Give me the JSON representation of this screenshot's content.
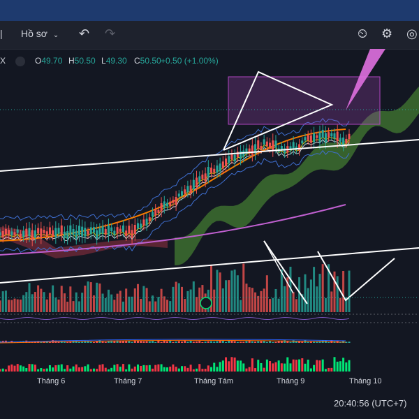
{
  "toolbar": {
    "interval_label": "Hồ sơ",
    "undo_icon": "undo-icon",
    "redo_icon": "redo-icon",
    "alert_icon": "alert-clock-icon",
    "settings_icon": "gear-icon",
    "camera_icon": "camera-icon"
  },
  "legend": {
    "close_glyph": "X",
    "open_label": "O",
    "open_value": "49.70",
    "high_label": "H",
    "high_value": "50.50",
    "low_label": "L",
    "low_value": "49.30",
    "close_label": "C",
    "close_value": "50.50",
    "change": "+0.50 (+1.00%)"
  },
  "xaxis": {
    "labels": [
      "Tháng 6",
      "Tháng 7",
      "Tháng Tám",
      "Tháng 9",
      "Tháng 10"
    ]
  },
  "footer": {
    "clock": "20:40:56 (UTC+7)"
  },
  "colors": {
    "up": "#26a69a",
    "down": "#ef5350",
    "cloud_green": "#3d6e2f",
    "cloud_red": "#7a2c3a",
    "purple_box": "#b146c2"
  }
}
